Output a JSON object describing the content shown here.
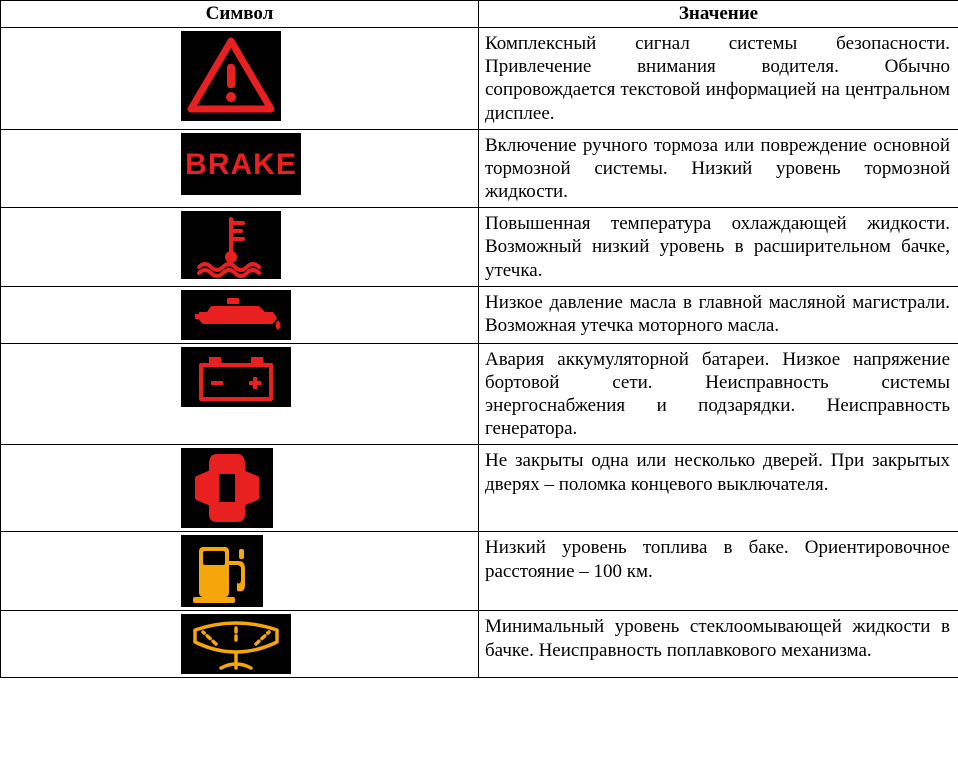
{
  "headers": {
    "symbol": "Символ",
    "meaning": "Значение"
  },
  "icon_colors": {
    "red": "#e82020",
    "amber": "#f5a60a",
    "black": "#000000"
  },
  "icon_box_sizes": {
    "warning_triangle": [
      100,
      90
    ],
    "brake_text": [
      120,
      62
    ],
    "coolant_temp": [
      100,
      68
    ],
    "oil_pressure": [
      110,
      50
    ],
    "battery": [
      110,
      60
    ],
    "door_open": [
      92,
      80
    ],
    "fuel_low": [
      82,
      72
    ],
    "washer_fluid": [
      110,
      60
    ]
  },
  "rows": [
    {
      "icon": "warning_triangle",
      "meaning": "Комплексный сигнал системы безопасности. Привлечение внимания водителя. Обычно сопровождается текстовой информацией на центральном дисплее."
    },
    {
      "icon": "brake_text",
      "meaning": "Включение ручного тормоза или повреждение основной тормозной системы. Низкий уровень тормозной жидкости."
    },
    {
      "icon": "coolant_temp",
      "meaning": "Повышенная температура охлаждающей жидкости. Возможный низкий уровень в расширительном бачке, утечка."
    },
    {
      "icon": "oil_pressure",
      "meaning": "Низкое давление масла в главной масляной магистрали. Возможная утечка моторного масла."
    },
    {
      "icon": "battery",
      "meaning": "Авария аккумуляторной батареи. Низкое напряжение бортовой сети. Неисправность системы энергоснабжения и подзарядки. Неисправность генератора."
    },
    {
      "icon": "door_open",
      "meaning": "Не закрыты одна или несколько дверей. При закрытых дверях – поломка концевого выключателя."
    },
    {
      "icon": "fuel_low",
      "meaning": "Низкий уровень топлива в баке. Ориентировочное расстояние – 100 км."
    },
    {
      "icon": "washer_fluid",
      "meaning": "Минимальный уровень стеклоомывающей жидкости в бачке. Неисправность поплавкового механизма."
    }
  ]
}
